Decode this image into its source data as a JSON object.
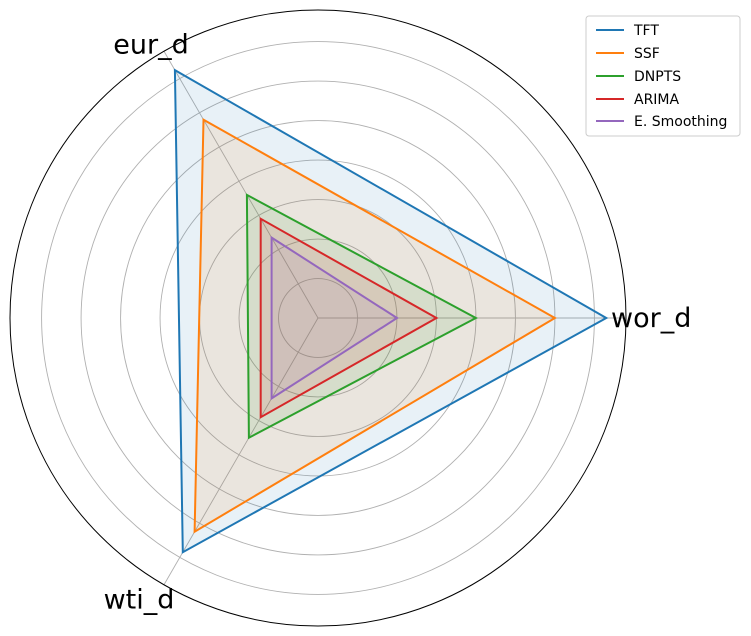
{
  "chart_data": {
    "type": "radar",
    "axes": [
      "wor_d",
      "eur_d",
      "wti_d"
    ],
    "rmax": 7.8,
    "ring_values": [
      1,
      2,
      3,
      4,
      5,
      6,
      7
    ],
    "grid": true,
    "legend_position": "top-right",
    "series": [
      {
        "name": "TFT",
        "values": [
          7.3,
          7.25,
          6.85
        ],
        "color": "#1f77b4",
        "fill": true
      },
      {
        "name": "SSF",
        "values": [
          6.0,
          5.8,
          6.25
        ],
        "color": "#ff7f0e",
        "fill": true
      },
      {
        "name": "DNPTS",
        "values": [
          4.0,
          3.6,
          3.5
        ],
        "color": "#2ca02c",
        "fill": true
      },
      {
        "name": "ARIMA",
        "values": [
          3.0,
          2.9,
          2.9
        ],
        "color": "#d62728",
        "fill": true
      },
      {
        "name": "E. Smoothing",
        "values": [
          2.0,
          2.35,
          2.35
        ],
        "color": "#9467bd",
        "fill": true
      }
    ]
  }
}
